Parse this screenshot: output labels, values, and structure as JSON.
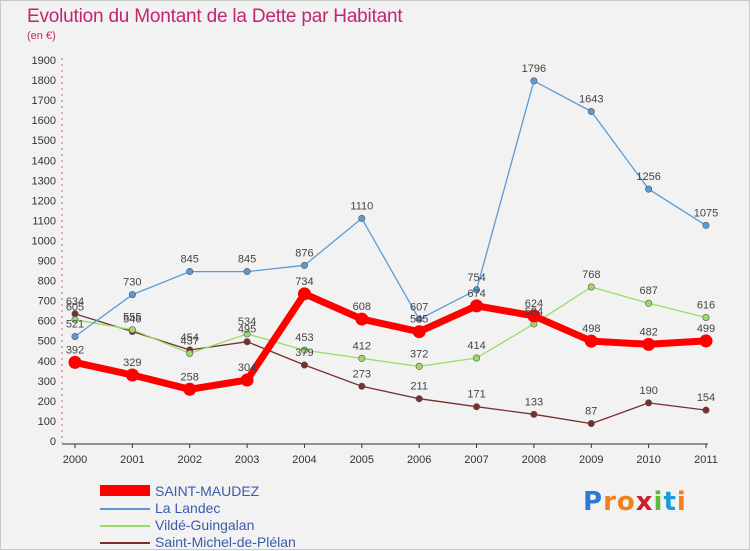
{
  "chart_data": {
    "type": "line",
    "title": "Evolution du Montant de la Dette par Habitant",
    "subtitle": "(en €)",
    "categories": [
      "2000",
      "2001",
      "2002",
      "2003",
      "2004",
      "2005",
      "2006",
      "2007",
      "2008",
      "2009",
      "2010",
      "2011"
    ],
    "ylim": [
      0,
      1900
    ],
    "ytick_step": 100,
    "grid": false,
    "legend_position": "bottom-left",
    "series": [
      {
        "name": "SAINT-MAUDEZ",
        "color": "#ff0000",
        "values": [
          392,
          329,
          258,
          304,
          734,
          608,
          545,
          674,
          624,
          498,
          482,
          499
        ]
      },
      {
        "name": "La Landec",
        "color": "#5b9bd5",
        "values": [
          521,
          730,
          845,
          845,
          876,
          1110,
          607,
          754,
          1796,
          1643,
          1256,
          1075
        ]
      },
      {
        "name": "Vildé-Guingalan",
        "color": "#99dd66",
        "values": [
          605,
          555,
          437,
          534,
          453,
          412,
          372,
          414,
          584,
          768,
          687,
          616
        ]
      },
      {
        "name": "Saint-Michel-de-Plélan",
        "color": "#7a2e2e",
        "values": [
          634,
          546,
          454,
          495,
          379,
          273,
          211,
          171,
          133,
          87,
          190,
          154
        ]
      }
    ]
  },
  "legend": {
    "items": [
      "SAINT-MAUDEZ",
      "La Landec",
      "Vildé-Guingalan",
      "Saint-Michel-de-Plélan"
    ]
  },
  "logo": {
    "letters": [
      "P",
      "r",
      "o",
      "x",
      "i",
      "t",
      "i"
    ],
    "colors": [
      "#2b7bd6",
      "#f07f1c",
      "#f07f1c",
      "#c8202c",
      "#5fb83a",
      "#1e9bd7",
      "#f07f1c"
    ]
  }
}
